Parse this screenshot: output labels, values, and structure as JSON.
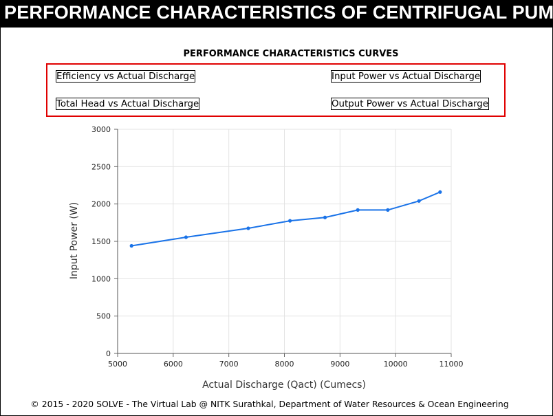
{
  "header": {
    "title": "PERFORMANCE CHARACTERISTICS OF CENTRIFUGAL PUMP"
  },
  "section": {
    "title": "PERFORMANCE CHARACTERISTICS CURVES"
  },
  "selectors": {
    "efficiency": "Efficiency vs Actual Discharge",
    "input_power": "Input Power vs Actual Discharge",
    "total_head": "Total Head vs Actual Discharge",
    "output_power": "Output Power vs Actual Discharge",
    "border_color": "#e00000"
  },
  "chart_data": {
    "type": "line",
    "xlabel": "Actual Discharge (Qact) (Cumecs)",
    "ylabel": "Input Power (W)",
    "xlim": [
      5000,
      11000
    ],
    "ylim": [
      0,
      3000
    ],
    "x_ticks": [
      5000,
      6000,
      7000,
      8000,
      9000,
      10000,
      11000
    ],
    "y_ticks": [
      0,
      500,
      1000,
      1500,
      2000,
      2500,
      3000
    ],
    "grid": true,
    "line_color": "#1a73e8",
    "series": [
      {
        "x": [
          5250,
          6230,
          7350,
          8100,
          8730,
          9320,
          9860,
          10420,
          10800
        ],
        "y": [
          1440,
          1555,
          1675,
          1775,
          1820,
          1920,
          1920,
          2040,
          2160
        ]
      }
    ]
  },
  "footer": {
    "text": "© 2015 - 2020 SOLVE - The Virtual Lab @ NITK Surathkal, Department of Water Resources & Ocean Engineering"
  }
}
